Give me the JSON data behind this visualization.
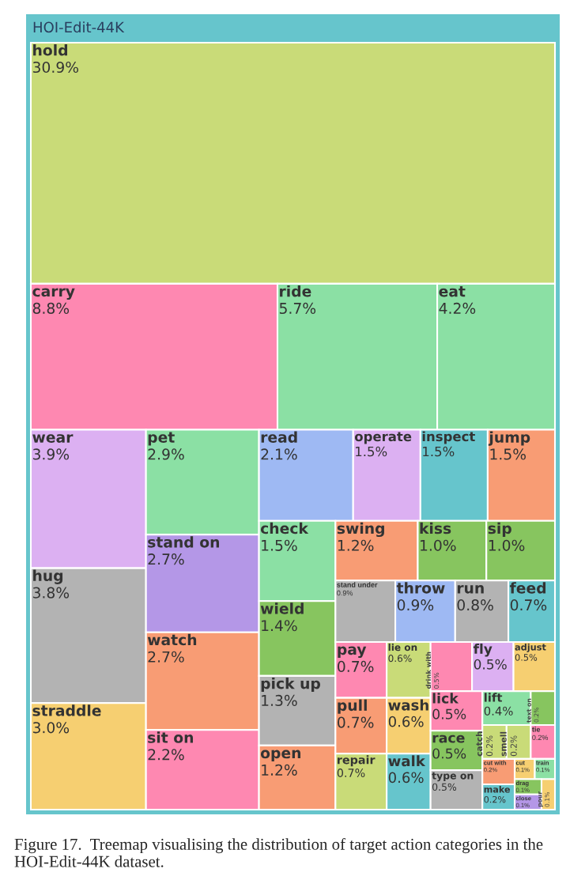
{
  "chart_data": {
    "type": "other",
    "title": "HOI-Edit-44K",
    "categories": [
      "hold",
      "carry",
      "ride",
      "eat",
      "wear",
      "hug",
      "straddle",
      "pet",
      "stand on",
      "watch",
      "sit on",
      "read",
      "operate",
      "inspect",
      "jump",
      "check",
      "wield",
      "pick up",
      "open",
      "swing",
      "kiss",
      "sip",
      "stand under",
      "throw",
      "run",
      "feed",
      "pay",
      "pull",
      "repair",
      "lie on",
      "wash",
      "walk",
      "drink with",
      "fly",
      "adjust",
      "lick",
      "race",
      "type on",
      "lift",
      "text on",
      "catch",
      "smell",
      "tie",
      "cut with",
      "make",
      "cut",
      "train",
      "drag",
      "close",
      "pour"
    ],
    "values": [
      30.9,
      8.8,
      5.7,
      4.2,
      3.9,
      3.8,
      3.0,
      2.9,
      2.7,
      2.7,
      2.2,
      2.1,
      1.5,
      1.5,
      1.5,
      1.5,
      1.4,
      1.3,
      1.2,
      1.2,
      1.0,
      1.0,
      0.9,
      0.9,
      0.8,
      0.7,
      0.7,
      0.7,
      0.7,
      0.6,
      0.6,
      0.6,
      0.5,
      0.5,
      0.5,
      0.5,
      0.5,
      0.5,
      0.4,
      0.2,
      0.2,
      0.2,
      0.2,
      0.2,
      0.2,
      0.1,
      0.1,
      0.1,
      0.1,
      0.1
    ],
    "value_labels": [
      "30.9%",
      "8.8%",
      "5.7%",
      "4.2%",
      "3.9%",
      "3.8%",
      "3.0%",
      "2.9%",
      "2.7%",
      "2.7%",
      "2.2%",
      "2.1%",
      "1.5%",
      "1.5%",
      "1.5%",
      "1.5%",
      "1.4%",
      "1.3%",
      "1.2%",
      "1.2%",
      "1.0%",
      "1.0%",
      "0.9%",
      "0.9%",
      "0.8%",
      "0.7%",
      "0.7%",
      "0.7%",
      "0.7%",
      "0.6%",
      "0.6%",
      "0.6%",
      "0.5%",
      "0.5%",
      "0.5%",
      "0.5%",
      "0.5%",
      "0.5%",
      "0.4%",
      "0.2%",
      "0.2%",
      "0.2%",
      "0.2%",
      "0.2%",
      "0.2%",
      "0.1%",
      "0.1%",
      "0.1%",
      "0.1%",
      "0.1%"
    ],
    "colors": [
      "#c9db78",
      "#fe88b1",
      "#8be0a4",
      "#8be0a4",
      "#dcb0f2",
      "#b3b3b3",
      "#f6cf71",
      "#8be0a4",
      "#b497e7",
      "#f89c74",
      "#fe88b1",
      "#9eb9f3",
      "#dcb0f2",
      "#66c5cc",
      "#f89c74",
      "#8be0a4",
      "#87c55f",
      "#b3b3b3",
      "#f89c74",
      "#f89c74",
      "#87c55f",
      "#87c55f",
      "#b3b3b3",
      "#9eb9f3",
      "#b3b3b3",
      "#66c5cc",
      "#fe88b1",
      "#f89c74",
      "#c9db78",
      "#c9db78",
      "#f6cf71",
      "#66c5cc",
      "#fe88b1",
      "#dcb0f2",
      "#f6cf71",
      "#fe88b1",
      "#87c55f",
      "#b3b3b3",
      "#8be0a4",
      "#87c55f",
      "#c9db78",
      "#c9db78",
      "#fe88b1",
      "#f89c74",
      "#66c5cc",
      "#f6cf71",
      "#8be0a4",
      "#87c55f",
      "#b497e7",
      "#f6cf71"
    ],
    "annotations": [
      "Figure 17.  Treemap visualising the distribution of target action categories in the HOI-Edit-44K dataset."
    ]
  }
}
